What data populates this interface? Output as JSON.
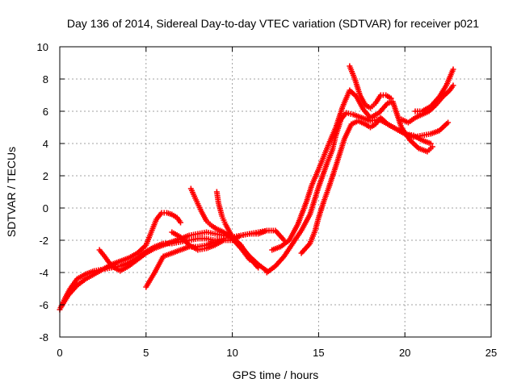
{
  "chart_data": {
    "type": "scatter",
    "title": "Day 136 of 2014, Sidereal Day-to-day VTEC variation (SDTVAR) for receiver p021",
    "xlabel": "GPS time / hours",
    "ylabel": "SDTVAR / TECUs",
    "xlim": [
      0,
      25
    ],
    "ylim": [
      -8,
      10
    ],
    "xticks": [
      "0",
      "5",
      "10",
      "15",
      "20",
      "25"
    ],
    "yticks": [
      "-8",
      "-6",
      "-4",
      "-2",
      "0",
      "2",
      "4",
      "6",
      "8",
      "10"
    ],
    "grid": true,
    "marker": "+",
    "color": "#ff0000",
    "series": [
      {
        "x": [
          0.0,
          0.3,
          0.6,
          1.0,
          1.5,
          2.0,
          2.5,
          3.0,
          3.5,
          4.0,
          4.5,
          5.0,
          5.5,
          6.0,
          6.5,
          7.0,
          7.5,
          8.0,
          8.5,
          9.0,
          9.5,
          10.0,
          10.5,
          11.0,
          11.5,
          12.0
        ],
        "y": [
          -6.3,
          -5.6,
          -5.0,
          -4.4,
          -4.1,
          -3.9,
          -3.8,
          -3.7,
          -3.6,
          -3.4,
          -3.1,
          -2.7,
          -2.4,
          -2.2,
          -2.2,
          -2.1,
          -2.0,
          -1.9,
          -1.9,
          -2.0,
          -1.9,
          -1.8,
          -2.4,
          -3.0,
          -3.5,
          -3.9
        ]
      },
      {
        "x": [
          0.1,
          0.5,
          1.0,
          1.5,
          2.0,
          2.5,
          3.0,
          3.5,
          4.0,
          4.5,
          5.0,
          5.3,
          5.6,
          5.9,
          6.2,
          6.5,
          6.8,
          7.0
        ],
        "y": [
          -6.1,
          -5.4,
          -4.8,
          -4.4,
          -4.1,
          -3.8,
          -3.5,
          -3.3,
          -3.1,
          -2.8,
          -2.3,
          -1.5,
          -0.7,
          -0.3,
          -0.3,
          -0.4,
          -0.6,
          -0.9
        ]
      },
      {
        "x": [
          2.3,
          2.6,
          3.0,
          3.5,
          4.0,
          4.5,
          5.0,
          5.5,
          6.0,
          6.5,
          7.0,
          7.5,
          8.0,
          8.5,
          9.0,
          9.5,
          10.0,
          10.5,
          11.0,
          11.5
        ],
        "y": [
          -2.6,
          -3.0,
          -3.6,
          -3.9,
          -3.6,
          -3.2,
          -2.8,
          -2.5,
          -2.3,
          -2.1,
          -1.9,
          -1.7,
          -1.6,
          -1.5,
          -1.6,
          -1.7,
          -1.8,
          -2.3,
          -3.1,
          -3.7
        ]
      },
      {
        "x": [
          7.6,
          7.9,
          8.2,
          8.5,
          8.8,
          9.1,
          9.5,
          10.0,
          10.5,
          11.0
        ],
        "y": [
          1.2,
          0.5,
          -0.2,
          -0.8,
          -1.1,
          -1.3,
          -1.5,
          -1.9,
          -2.5,
          -3.2
        ]
      },
      {
        "x": [
          9.1,
          9.2,
          9.4,
          9.6,
          9.8,
          10.0,
          10.5,
          11.0,
          11.5,
          12.0
        ],
        "y": [
          1.0,
          0.3,
          -0.5,
          -1.0,
          -1.4,
          -1.8,
          -1.7,
          -1.6,
          -1.6,
          -1.4
        ]
      },
      {
        "x": [
          5.0,
          5.5,
          6.0,
          6.5,
          7.0,
          7.5,
          8.0,
          8.5,
          9.0,
          9.5,
          10.0
        ],
        "y": [
          -4.9,
          -4.0,
          -3.0,
          -2.8,
          -2.6,
          -2.4,
          -2.4,
          -2.3,
          -2.1,
          -2.0,
          -2.0
        ]
      },
      {
        "x": [
          6.5,
          7.0,
          7.5,
          8.0,
          8.5,
          9.0,
          9.5
        ],
        "y": [
          -1.5,
          -1.8,
          -2.3,
          -2.6,
          -2.5,
          -2.3,
          -2.0
        ]
      },
      {
        "x": [
          10.0,
          10.5,
          11.0,
          11.5,
          12.0,
          12.5,
          13.0
        ],
        "y": [
          -2.0,
          -1.7,
          -1.6,
          -1.5,
          -1.4,
          -1.4,
          -2.0
        ]
      },
      {
        "x": [
          12.0,
          12.5,
          13.0,
          13.5,
          14.0,
          14.5,
          15.0,
          15.5,
          15.8,
          16.0,
          16.3,
          16.6,
          17.0,
          17.5,
          18.0,
          18.5,
          19.0,
          19.5,
          20.0,
          20.5,
          21.0,
          21.5
        ],
        "y": [
          -4.0,
          -3.6,
          -3.0,
          -2.2,
          -1.4,
          -0.4,
          1.3,
          2.8,
          3.6,
          4.5,
          5.5,
          5.9,
          5.8,
          5.6,
          5.4,
          5.5,
          5.2,
          4.9,
          4.6,
          4.5,
          4.2,
          4.0
        ]
      },
      {
        "x": [
          12.3,
          12.8,
          13.3,
          13.8,
          14.3,
          14.6,
          15.0,
          15.3,
          15.6,
          16.0,
          16.4,
          16.8,
          17.2,
          17.6,
          18.0,
          18.5,
          19.0,
          19.3,
          19.8,
          20.3,
          20.8,
          21.3,
          21.6
        ],
        "y": [
          -2.6,
          -2.4,
          -2.0,
          -1.0,
          0.4,
          1.4,
          2.4,
          3.2,
          4.0,
          5.0,
          6.3,
          7.3,
          6.9,
          6.1,
          5.6,
          5.9,
          6.5,
          6.6,
          5.0,
          4.2,
          3.7,
          3.5,
          3.8
        ]
      },
      {
        "x": [
          14.0,
          14.5,
          14.8,
          15.0,
          15.3,
          15.6,
          16.0,
          16.5,
          16.9,
          17.3,
          17.7,
          18.0,
          18.3,
          18.6,
          19.0,
          19.5,
          20.0,
          20.5,
          21.0,
          21.5,
          22.0,
          22.5
        ],
        "y": [
          -2.8,
          -2.2,
          -1.4,
          -0.6,
          0.4,
          1.3,
          2.6,
          4.3,
          5.2,
          5.4,
          5.2,
          5.0,
          5.2,
          5.6,
          5.2,
          4.9,
          4.6,
          4.4,
          4.5,
          4.6,
          4.8,
          5.3
        ]
      },
      {
        "x": [
          16.8,
          17.1,
          17.4,
          17.7,
          18.0,
          18.3,
          18.6,
          18.9,
          19.2
        ],
        "y": [
          8.8,
          8.0,
          7.0,
          6.4,
          6.2,
          6.5,
          7.0,
          7.0,
          6.8
        ]
      },
      {
        "x": [
          19.8,
          20.2,
          20.6,
          21.0,
          21.4,
          21.8,
          22.2,
          22.6,
          22.8
        ],
        "y": [
          5.5,
          5.3,
          5.6,
          5.8,
          6.0,
          6.4,
          6.9,
          7.3,
          7.6
        ]
      },
      {
        "x": [
          20.6,
          21.0,
          21.5,
          22.0,
          22.4,
          22.8
        ],
        "y": [
          6.0,
          6.0,
          6.3,
          6.9,
          7.6,
          8.6
        ]
      }
    ]
  }
}
